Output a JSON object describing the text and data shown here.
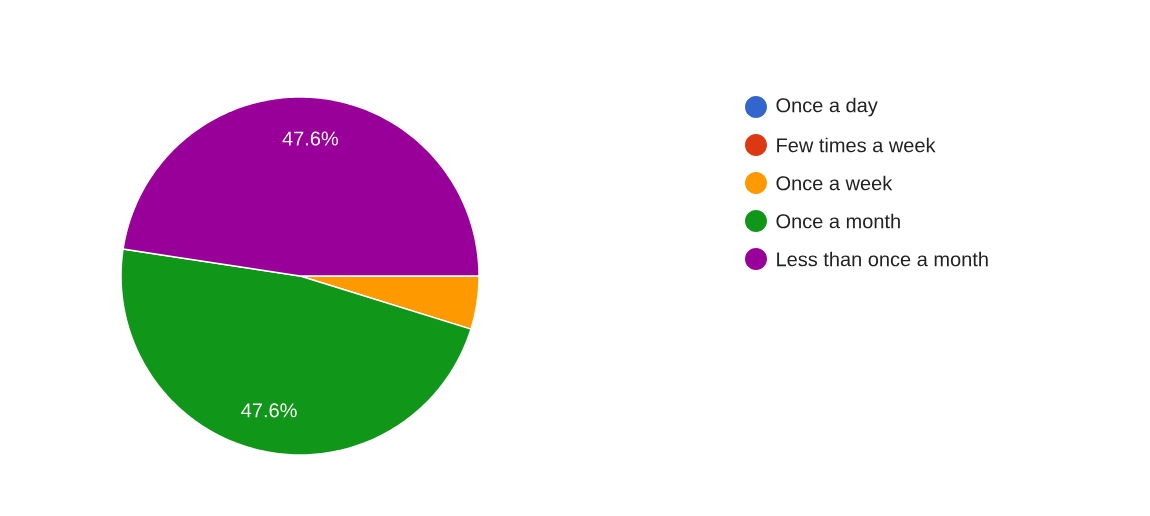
{
  "chart_data": {
    "type": "pie",
    "categories": [
      "Once a day",
      "Few times a week",
      "Once a week",
      "Once a month",
      "Less than once a month"
    ],
    "values": [
      0,
      0,
      4.8,
      47.6,
      47.6
    ],
    "colors": [
      "#3366cc",
      "#dc3912",
      "#ff9900",
      "#109618",
      "#990099"
    ],
    "value_labels": [
      null,
      null,
      null,
      "47.6%",
      "47.6%"
    ],
    "legend": "right"
  }
}
